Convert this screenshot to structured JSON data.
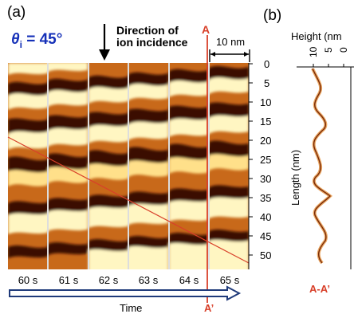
{
  "panel_a": {
    "label": "(a)",
    "theta_symbol": "θ",
    "theta_sub": "i",
    "theta_value": " = 45°",
    "direction_line1": "Direction of",
    "direction_line2": "ion incidence",
    "scale_label": "10 nm",
    "line_label_top": "A",
    "line_label_bottom": "A’",
    "time_label": "Time",
    "frames": [
      "60 s",
      "61 s",
      "62 s",
      "63 s",
      "64 s",
      "65 s"
    ],
    "length_ticks": [
      "0",
      "5",
      "10",
      "15",
      "20",
      "25",
      "30",
      "35",
      "40",
      "45",
      "50"
    ],
    "colors": {
      "dark": "#3a0f02",
      "mid": "#c8691a",
      "light": "#fff6c2",
      "redline": "#d8402a",
      "arrow": "#1f3a7a"
    }
  },
  "panel_b": {
    "label": "(b)",
    "height_label": "Height (nm",
    "height_ticks": [
      "10",
      "5",
      "0"
    ],
    "ylabel": "Length  (nm)",
    "profile_label": "A-A’"
  }
}
